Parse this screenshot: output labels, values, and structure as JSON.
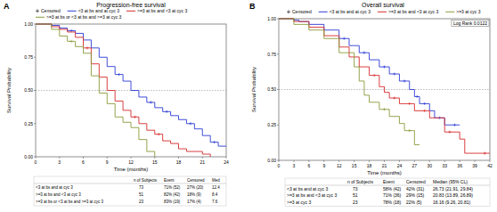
{
  "chart_data": [
    {
      "type": "line",
      "line_style": "step",
      "panel": "A",
      "title": "Progression-free survival",
      "x_label": "Time (months)",
      "y_label": "Survival Probability",
      "xlim": [
        0,
        24
      ],
      "xticks": [
        0,
        3,
        6,
        9,
        12,
        15,
        18,
        21,
        24
      ],
      "ylim": [
        0,
        1
      ],
      "yticks": [
        {
          "value": 0,
          "label": "0.00"
        },
        {
          "value": 0.25,
          "label": "0.25"
        },
        {
          "value": 0.5,
          "label": "0.50"
        },
        {
          "value": 0.75,
          "label": "0.75"
        },
        {
          "value": 1,
          "label": "1.00"
        }
      ],
      "hline": 0.5,
      "censored_label": "Censored",
      "legend": "top",
      "series": [
        {
          "name": "<3 at bs and at cyc 3",
          "color": "#2b3bd6",
          "x": [
            0,
            2,
            3,
            4,
            5,
            6,
            7,
            8,
            9,
            10,
            11,
            12,
            13,
            14,
            15,
            16,
            17,
            18,
            19,
            20,
            21,
            22,
            23,
            24
          ],
          "values": [
            1,
            0.99,
            0.97,
            0.95,
            0.93,
            0.88,
            0.82,
            0.75,
            0.68,
            0.62,
            0.57,
            0.5,
            0.45,
            0.41,
            0.37,
            0.34,
            0.31,
            0.28,
            0.25,
            0.21,
            0.16,
            0.11,
            0.08,
            0.08
          ],
          "censored": [
            4.5,
            10.5,
            14.5,
            16.5,
            19.5,
            22.5
          ]
        },
        {
          "name": ">=3 at bs and <3 at cyc 3",
          "color": "#d62a2a",
          "x": [
            0,
            2,
            3,
            4,
            5,
            6,
            7,
            8,
            9,
            10,
            11,
            12,
            13,
            14,
            15,
            16,
            17,
            18,
            19,
            21,
            22
          ],
          "values": [
            1,
            0.98,
            0.96,
            0.94,
            0.9,
            0.82,
            0.7,
            0.6,
            0.5,
            0.42,
            0.35,
            0.3,
            0.25,
            0.2,
            0.17,
            0.12,
            0.1,
            0.06,
            0.04,
            0.02,
            0
          ],
          "censored": [
            6.5,
            12.5,
            15.5
          ]
        },
        {
          "name": ">=3 at bs or <3 at bs and >=3 at cyc 3",
          "color": "#8a9a3a",
          "x": [
            0,
            2,
            3,
            4,
            5,
            6,
            7,
            8,
            9,
            10,
            11,
            12,
            13,
            14,
            15
          ],
          "values": [
            1,
            0.96,
            0.91,
            0.87,
            0.83,
            0.78,
            0.61,
            0.48,
            0.4,
            0.3,
            0.26,
            0.22,
            0.13,
            0.04,
            0
          ],
          "censored": [
            4.5
          ]
        }
      ],
      "table": {
        "columns": [
          "n of Subjects",
          "Event",
          "Censored",
          "Med"
        ],
        "rows": [
          [
            "<3 at bs and at cyc 3",
            "73",
            "71% (52)",
            "27% (20)",
            "12.4"
          ],
          [
            ">=3 at bs and <3 at cyc 3",
            "51",
            "82% (42)",
            "18% (9)",
            "8.4"
          ],
          [
            ">=3 at bs or <3 at bs and >=3 at cyc 3",
            "23",
            "83% (19)",
            "17% (4)",
            "7.6"
          ]
        ]
      }
    },
    {
      "type": "line",
      "line_style": "step",
      "panel": "B",
      "title": "Overall survival",
      "x_label": "Time (months)",
      "y_label": "Survival Probability",
      "xlim": [
        0,
        42
      ],
      "xticks": [
        0,
        3,
        6,
        9,
        12,
        15,
        18,
        21,
        24,
        27,
        30,
        33,
        36,
        39,
        42
      ],
      "ylim": [
        0,
        1
      ],
      "yticks": [
        {
          "value": 0,
          "label": "0.00"
        },
        {
          "value": 0.25,
          "label": "0.25"
        },
        {
          "value": 0.5,
          "label": "0.50"
        },
        {
          "value": 0.75,
          "label": "0.75"
        },
        {
          "value": 1,
          "label": "1.00"
        }
      ],
      "hline": 0.5,
      "censored_label": "Censored",
      "legend": "top",
      "annotation": "Log Rank 0.0122",
      "series": [
        {
          "name": "<3 at bs and at cyc 3",
          "color": "#2b3bd6",
          "x": [
            0,
            3,
            4,
            6,
            9,
            12,
            14,
            16,
            18,
            20,
            22,
            24,
            26,
            27,
            28,
            30,
            31,
            33,
            36
          ],
          "values": [
            1,
            0.99,
            0.98,
            0.96,
            0.92,
            0.86,
            0.81,
            0.76,
            0.71,
            0.66,
            0.61,
            0.56,
            0.5,
            0.45,
            0.4,
            0.35,
            0.3,
            0.25,
            0.25
          ],
          "censored": [
            13,
            17,
            21,
            23,
            25,
            27.5,
            29,
            32,
            35
          ]
        },
        {
          "name": ">=3 at bs and <3 at cyc 3",
          "color": "#d62a2a",
          "x": [
            0,
            3,
            6,
            9,
            12,
            14,
            16,
            18,
            20,
            21,
            22,
            24,
            27,
            30,
            33,
            36,
            37,
            42
          ],
          "values": [
            1,
            0.98,
            0.94,
            0.88,
            0.8,
            0.73,
            0.66,
            0.6,
            0.52,
            0.48,
            0.44,
            0.4,
            0.35,
            0.3,
            0.2,
            0.15,
            0.05,
            0.05
          ],
          "censored": [
            19,
            23,
            26,
            29,
            34,
            41
          ]
        },
        {
          "name": ">=3 at cyc 3",
          "color": "#8a9a3a",
          "x": [
            0,
            3,
            6,
            9,
            12,
            15,
            16,
            17,
            18,
            20,
            22,
            24,
            25,
            27,
            28
          ],
          "values": [
            1,
            0.96,
            0.92,
            0.86,
            0.76,
            0.66,
            0.56,
            0.46,
            0.41,
            0.36,
            0.31,
            0.26,
            0.21,
            0.11,
            0.11
          ],
          "censored": [
            21,
            26
          ]
        }
      ],
      "table": {
        "columns": [
          "n of Subjects",
          "Event",
          "Censored",
          "Median (95% CL)"
        ],
        "rows": [
          [
            "<3 at bs and at cyc 3",
            "73",
            "58% (42)",
            "42% (31)",
            "26.73 (21.91, 29.84)"
          ],
          [
            ">=3 at bs and <3 at cyc 3",
            "51",
            "71% (36)",
            "29% (15)",
            "20.83 (13.89, 26.89)"
          ],
          [
            ">=3 at cyc 3",
            "23",
            "78% (18)",
            "22% (5)",
            "16.16 (9.26, 20.81)"
          ]
        ]
      }
    }
  ]
}
